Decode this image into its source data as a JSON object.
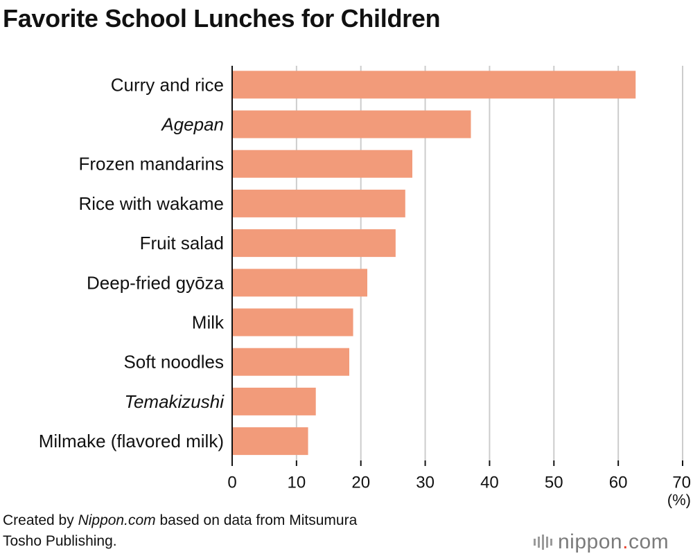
{
  "title": "Favorite School Lunches for Children",
  "footer": {
    "prefix": "Created by ",
    "brand": "Nippon.com",
    "suffix": " based on data from Mitsumura",
    "line2": "Tosho Publishing."
  },
  "logo": {
    "part1": "nippon",
    "dot": ".",
    "part2": "com"
  },
  "colors": {
    "bar": "#f29b7a",
    "grid": "#cccccc",
    "axis": "#111111",
    "accent": "#e8412c"
  },
  "chart_data": {
    "type": "bar",
    "orientation": "horizontal",
    "title": "Favorite School Lunches for Children",
    "categories": [
      "Curry and rice",
      "Agepan",
      "Frozen mandarins",
      "Rice with wakame",
      "Fruit salad",
      "Deep-fried gyōza",
      "Milk",
      "Soft noodles",
      "Temakizushi",
      "Milmake (flavored milk)"
    ],
    "italic": [
      false,
      true,
      false,
      false,
      false,
      false,
      false,
      false,
      true,
      false
    ],
    "values": [
      62.7,
      37.1,
      28.0,
      26.9,
      25.4,
      21.0,
      18.8,
      18.2,
      13.0,
      11.8
    ],
    "xlim": [
      0,
      70
    ],
    "xticks": [
      0,
      10,
      20,
      30,
      40,
      50,
      60,
      70
    ],
    "xunit": "(%)",
    "grid": true
  }
}
